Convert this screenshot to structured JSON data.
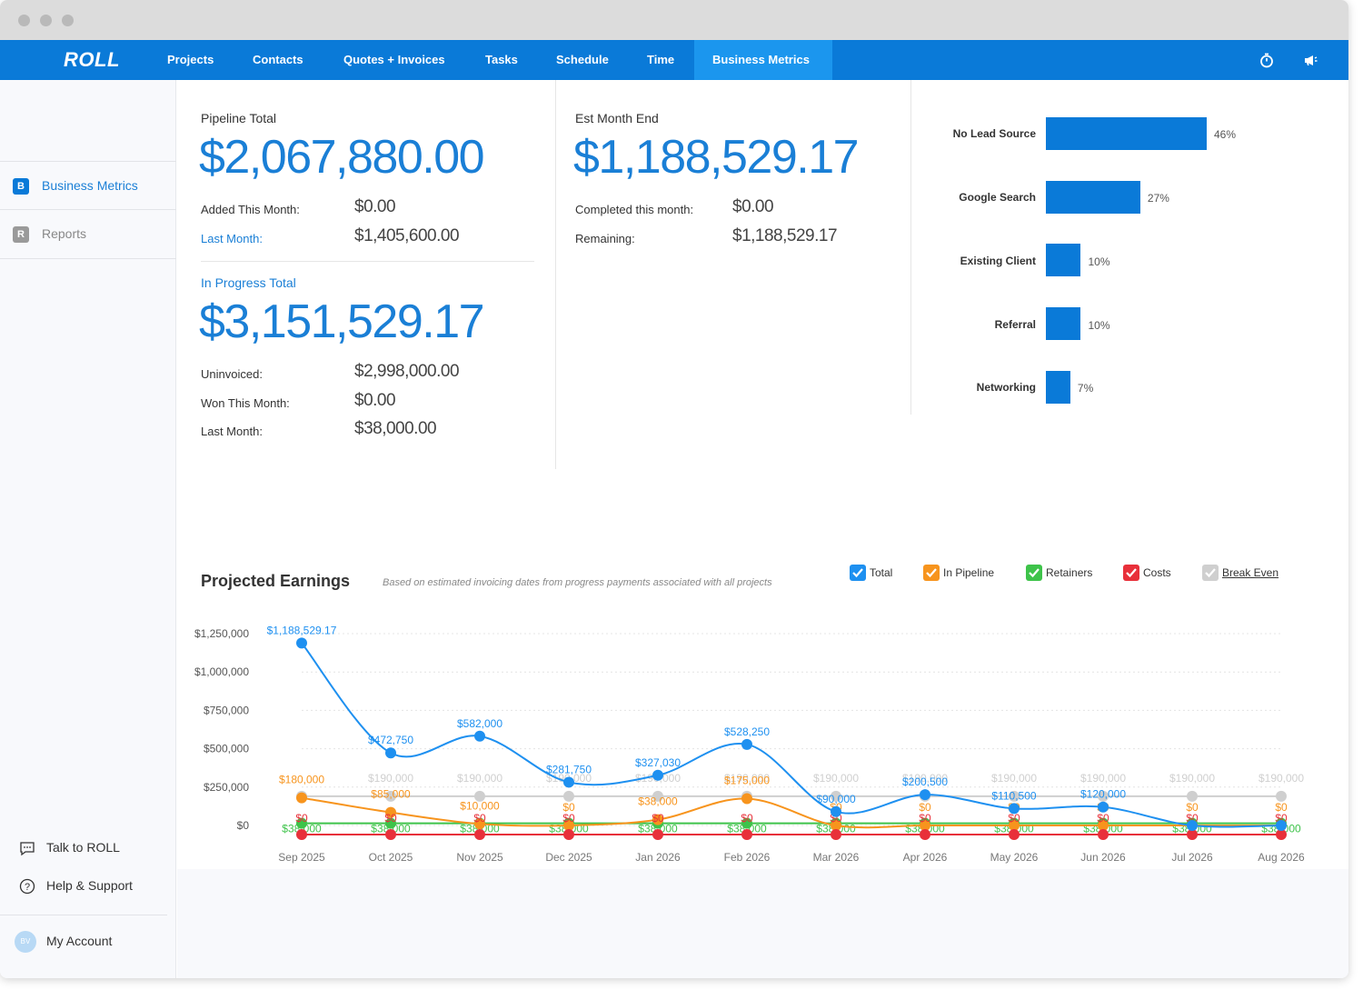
{
  "nav": {
    "logo": "ROLL",
    "items": [
      "Projects",
      "Contacts",
      "Quotes + Invoices",
      "Tasks",
      "Schedule",
      "Time",
      "Business Metrics"
    ],
    "active": "Business Metrics",
    "accent": "#0a7ad8",
    "active_color": "#1b96ee"
  },
  "sidebar": {
    "items": [
      {
        "badge": "B",
        "label": "Business Metrics",
        "active": true
      },
      {
        "badge": "R",
        "label": "Reports",
        "active": false
      }
    ],
    "footer": {
      "talk": "Talk to ROLL",
      "help": "Help & Support",
      "account": "My Account",
      "avatar_initials": "BV"
    }
  },
  "pipeline": {
    "label": "Pipeline Total",
    "value": "$2,067,880.00",
    "rows": [
      {
        "label": "Added This Month:",
        "value": "$0.00"
      },
      {
        "label": "Last Month:",
        "value": "$1,405,600.00"
      }
    ]
  },
  "in_progress": {
    "label": "In Progress Total",
    "value": "$3,151,529.17",
    "rows": [
      {
        "label": "Uninvoiced:",
        "value": "$2,998,000.00"
      },
      {
        "label": "Won This Month:",
        "value": "$0.00"
      },
      {
        "label": "Last Month:",
        "value": "$38,000.00"
      }
    ]
  },
  "month_end": {
    "label": "Est Month End",
    "value": "$1,188,529.17",
    "rows": [
      {
        "label": "Completed this month:",
        "value": "$0.00"
      },
      {
        "label": "Remaining:",
        "value": "$1,188,529.17"
      }
    ]
  },
  "lead_sources": {
    "items": [
      {
        "label": "No Lead Source",
        "pct": 46,
        "pct_label": "46%"
      },
      {
        "label": "Google Search",
        "pct": 27,
        "pct_label": "27%"
      },
      {
        "label": "Existing Client",
        "pct": 10,
        "pct_label": "10%"
      },
      {
        "label": "Referral",
        "pct": 10,
        "pct_label": "10%"
      },
      {
        "label": "Networking",
        "pct": 7,
        "pct_label": "7%"
      }
    ]
  },
  "projected": {
    "title": "Projected Earnings",
    "subtitle": "Based on estimated invoicing dates from progress payments associated with all projects",
    "legend": [
      {
        "label": "Total",
        "color": "#1e90f0",
        "checked": true
      },
      {
        "label": "In Pipeline",
        "color": "#f7941d",
        "checked": true
      },
      {
        "label": "Retainers",
        "color": "#3ec34a",
        "checked": true
      },
      {
        "label": "Costs",
        "color": "#e8303a",
        "checked": true
      },
      {
        "label": "Break Even",
        "color": "#cfcfcf",
        "checked": true
      }
    ]
  },
  "chart_data": {
    "type": "line",
    "title": "Projected Earnings",
    "x": [
      "Sep 2025",
      "Oct 2025",
      "Nov 2025",
      "Dec 2025",
      "Jan 2026",
      "Feb 2026",
      "Mar 2026",
      "Apr 2026",
      "May 2026",
      "Jun 2026",
      "Jul 2026",
      "Aug 2026"
    ],
    "ylim": [
      0,
      1250000
    ],
    "yticks": [
      0,
      250000,
      500000,
      750000,
      1000000,
      1250000
    ],
    "ytick_labels": [
      "$0",
      "$250,000",
      "$500,000",
      "$750,000",
      "$1,000,000",
      "$1,250,000"
    ],
    "grid": true,
    "series": [
      {
        "name": "Break Even",
        "color": "#cfcfcf",
        "values": [
          190000,
          190000,
          190000,
          190000,
          190000,
          190000,
          190000,
          190000,
          190000,
          190000,
          190000,
          190000
        ],
        "labels": [
          "",
          "$190,000",
          "$190,000",
          "$190,000",
          "$190,000",
          "$190,000",
          "$190,000",
          "$190,000",
          "$190,000",
          "$190,000",
          "$190,000",
          "$190,000"
        ]
      },
      {
        "name": "Retainers",
        "color": "#3ec34a",
        "values": [
          38000,
          38000,
          38000,
          38000,
          38000,
          38000,
          38000,
          38000,
          38000,
          38000,
          38000,
          38000
        ],
        "labels": [
          "$38,000",
          "$38,000",
          "$38,000",
          "$38,000",
          "$38,000",
          "$38,000",
          "$38,000",
          "$38,000",
          "$38,000",
          "$38,000",
          "$38,000",
          "$38,000"
        ]
      },
      {
        "name": "In Pipeline",
        "color": "#f7941d",
        "values": [
          180000,
          85000,
          10000,
          0,
          38000,
          175000,
          0,
          0,
          0,
          0,
          0,
          0
        ],
        "labels": [
          "$180,000",
          "$85,000",
          "$10,000",
          "$0",
          "$38,000",
          "$175,000",
          "$0",
          "$0",
          "$0",
          "$0",
          "$0",
          "$0"
        ]
      },
      {
        "name": "Costs",
        "color": "#e8303a",
        "values": [
          0,
          0,
          0,
          0,
          0,
          0,
          0,
          0,
          0,
          0,
          0,
          0
        ],
        "labels": [
          "$0",
          "$0",
          "$0",
          "$0",
          "$0",
          "$0",
          "$0",
          "$0",
          "$0",
          "$0",
          "$0",
          "$0"
        ]
      },
      {
        "name": "Total",
        "color": "#1e90f0",
        "values": [
          1188529.17,
          472750,
          582000,
          281750,
          327030,
          528250,
          90000,
          200500,
          110500,
          120000,
          0,
          0
        ],
        "labels": [
          "$1,188,529.17",
          "$472,750",
          "$582,000",
          "$281,750",
          "$327,030",
          "$528,250",
          "$90,000",
          "$200,500",
          "$110,500",
          "$120,000",
          "",
          ""
        ]
      }
    ]
  }
}
